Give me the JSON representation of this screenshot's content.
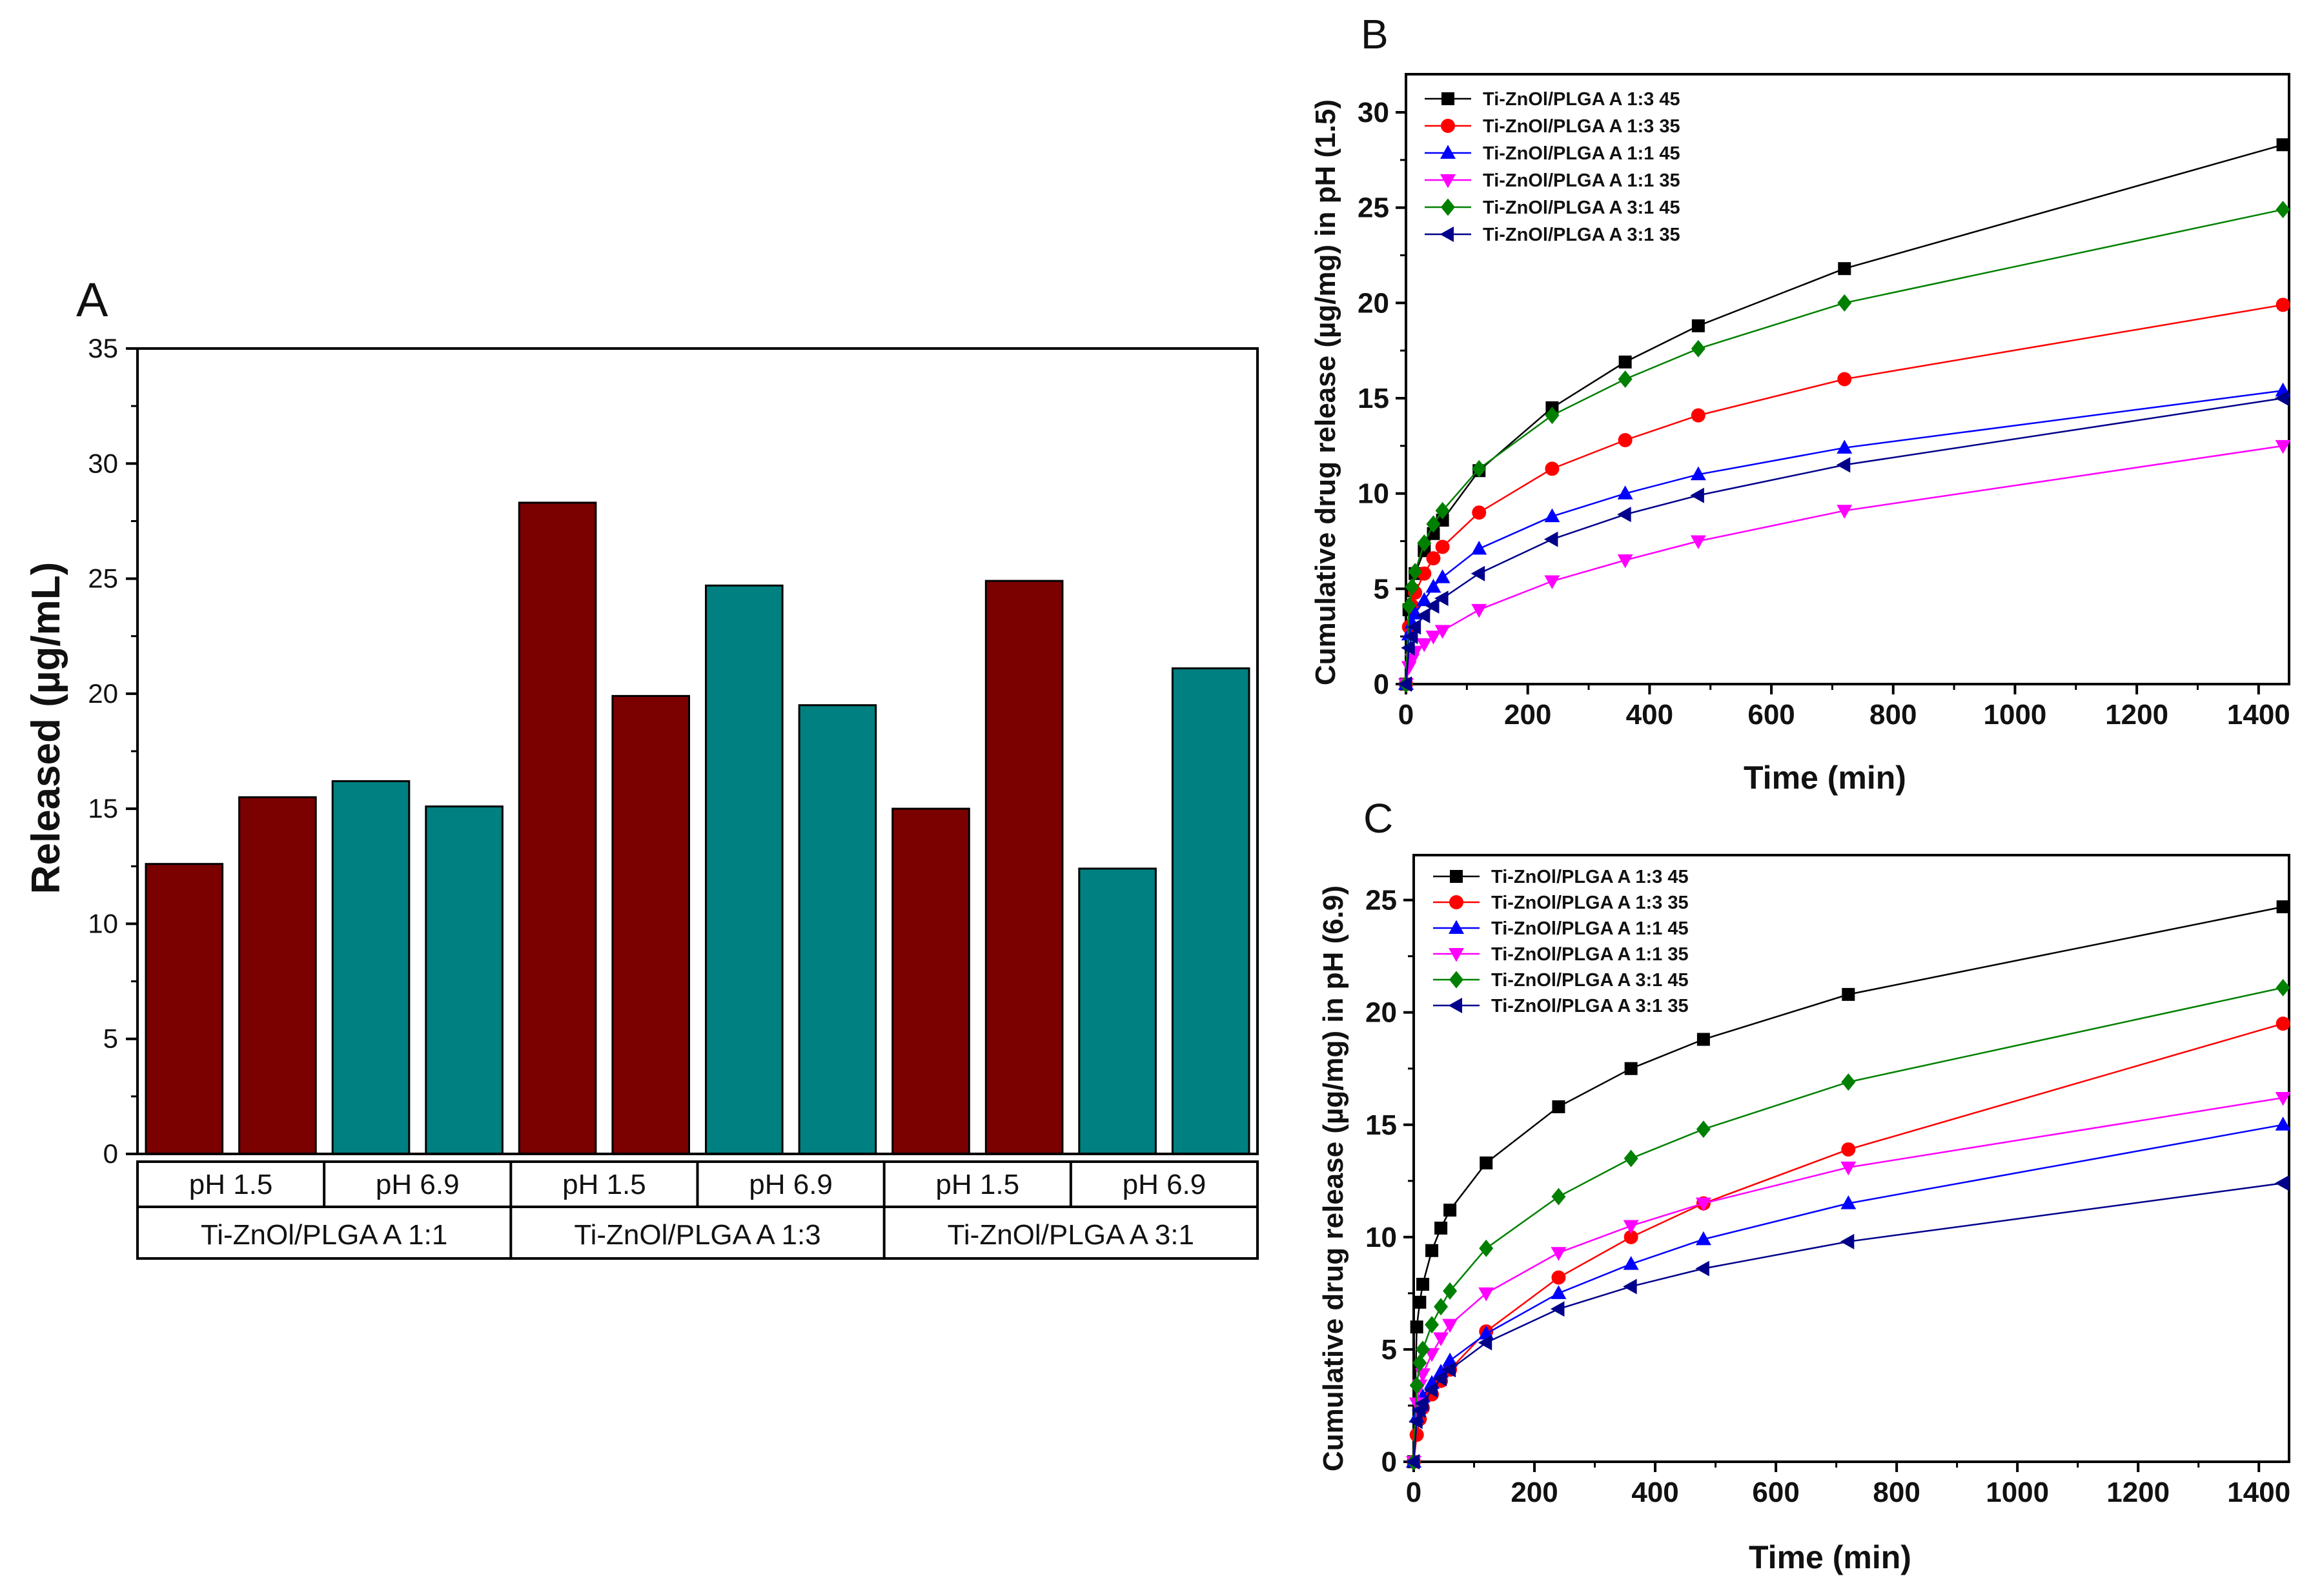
{
  "chart_data": [
    {
      "panel": "A",
      "type": "bar",
      "ylabel": "Released (µg/mL)",
      "ylim": [
        0,
        35
      ],
      "yticks": [
        0,
        5,
        10,
        15,
        20,
        25,
        30,
        35
      ],
      "groups": [
        "Ti-ZnOl/PLGA A 1:1",
        "Ti-ZnOl/PLGA A 1:3",
        "Ti-ZnOl/PLGA A 3:1"
      ],
      "subgroups": [
        "pH 1.5",
        "pH 6.9"
      ],
      "colors": {
        "pH 1.5": "#7b0000",
        "pH 6.9": "#008080"
      },
      "bars": [
        {
          "group": 0,
          "sub": 0,
          "value": 12.6
        },
        {
          "group": 0,
          "sub": 0,
          "value": 15.5
        },
        {
          "group": 0,
          "sub": 1,
          "value": 16.2
        },
        {
          "group": 0,
          "sub": 1,
          "value": 15.1
        },
        {
          "group": 1,
          "sub": 0,
          "value": 28.3
        },
        {
          "group": 1,
          "sub": 0,
          "value": 19.9
        },
        {
          "group": 1,
          "sub": 1,
          "value": 24.7
        },
        {
          "group": 1,
          "sub": 1,
          "value": 19.5
        },
        {
          "group": 2,
          "sub": 0,
          "value": 15.0
        },
        {
          "group": 2,
          "sub": 0,
          "value": 24.9
        },
        {
          "group": 2,
          "sub": 1,
          "value": 12.4
        },
        {
          "group": 2,
          "sub": 1,
          "value": 21.1
        }
      ]
    },
    {
      "panel": "B",
      "type": "line",
      "xlabel": "Time (min)",
      "ylabel": "Cumulative drug release (µg/mg) in  pH (1.5)",
      "xlim": [
        0,
        1450
      ],
      "ylim": [
        0,
        32
      ],
      "xticks": [
        0,
        200,
        400,
        600,
        800,
        1000,
        1200,
        1400
      ],
      "yticks": [
        0,
        5,
        10,
        15,
        20,
        25,
        30
      ],
      "legend_position": "top-left",
      "x": [
        0,
        5,
        10,
        15,
        30,
        45,
        60,
        120,
        240,
        360,
        480,
        720,
        1440
      ],
      "series": [
        {
          "name": "Ti-ZnOl/PLGA A 1:3 45",
          "color": "#000000",
          "marker": "square",
          "values": [
            0,
            3.9,
            4.9,
            5.8,
            7.0,
            7.9,
            8.6,
            11.2,
            14.5,
            16.9,
            18.8,
            21.8,
            28.3
          ]
        },
        {
          "name": "Ti-ZnOl/PLGA A 1:3 35",
          "color": "#ff0000",
          "marker": "circle",
          "values": [
            0,
            3.0,
            4.1,
            4.8,
            5.8,
            6.6,
            7.2,
            9.0,
            11.3,
            12.8,
            14.1,
            16.0,
            19.9
          ]
        },
        {
          "name": "Ti-ZnOl/PLGA A 1:1 45",
          "color": "#0000ff",
          "marker": "triangle-up",
          "values": [
            0,
            2.6,
            3.2,
            3.7,
            4.4,
            5.1,
            5.6,
            7.1,
            8.8,
            10.0,
            11.0,
            12.4,
            15.4
          ]
        },
        {
          "name": "Ti-ZnOl/PLGA A 1:1 35",
          "color": "#ff00ff",
          "marker": "triangle-down",
          "values": [
            0,
            0.9,
            1.3,
            1.7,
            2.1,
            2.5,
            2.8,
            3.9,
            5.4,
            6.5,
            7.5,
            9.1,
            12.5
          ]
        },
        {
          "name": "Ti-ZnOl/PLGA A 3:1 45",
          "color": "#008000",
          "marker": "diamond",
          "values": [
            0,
            4.1,
            5.1,
            5.9,
            7.4,
            8.4,
            9.1,
            11.3,
            14.1,
            16.0,
            17.6,
            20.0,
            24.9
          ]
        },
        {
          "name": "Ti-ZnOl/PLGA A 3:1 35",
          "color": "#00008b",
          "marker": "triangle-left",
          "values": [
            0,
            1.9,
            2.5,
            3.0,
            3.6,
            4.1,
            4.5,
            5.8,
            7.6,
            8.9,
            9.9,
            11.5,
            15.0
          ]
        }
      ]
    },
    {
      "panel": "C",
      "type": "line",
      "xlabel": "Time (min)",
      "ylabel": "Cumulative drug release (µg/mg) in  pH (6.9)",
      "xlim": [
        0,
        1450
      ],
      "ylim": [
        0,
        27
      ],
      "xticks": [
        0,
        200,
        400,
        600,
        800,
        1000,
        1200,
        1400
      ],
      "yticks": [
        0,
        5,
        10,
        15,
        20,
        25
      ],
      "legend_position": "top-left",
      "x": [
        0,
        5,
        10,
        15,
        30,
        45,
        60,
        120,
        240,
        360,
        480,
        720,
        1440
      ],
      "series": [
        {
          "name": "Ti-ZnOl/PLGA A 1:3 45",
          "color": "#000000",
          "marker": "square",
          "values": [
            0,
            6.0,
            7.1,
            7.9,
            9.4,
            10.4,
            11.2,
            13.3,
            15.8,
            17.5,
            18.8,
            20.8,
            24.7
          ]
        },
        {
          "name": "Ti-ZnOl/PLGA A 1:3 35",
          "color": "#ff0000",
          "marker": "circle",
          "values": [
            0,
            1.2,
            1.9,
            2.4,
            3.0,
            3.6,
            4.1,
            5.8,
            8.2,
            10.0,
            11.5,
            13.9,
            19.5
          ]
        },
        {
          "name": "Ti-ZnOl/PLGA A 1:1 45",
          "color": "#0000ff",
          "marker": "triangle-up",
          "values": [
            0,
            2.0,
            2.5,
            2.9,
            3.5,
            4.0,
            4.5,
            5.7,
            7.5,
            8.8,
            9.9,
            11.5,
            15.0
          ]
        },
        {
          "name": "Ti-ZnOl/PLGA A 1:1 35",
          "color": "#ff00ff",
          "marker": "triangle-down",
          "values": [
            0,
            2.6,
            3.4,
            3.9,
            4.8,
            5.5,
            6.1,
            7.5,
            9.3,
            10.5,
            11.5,
            13.1,
            16.2
          ]
        },
        {
          "name": "Ti-ZnOl/PLGA A 3:1 45",
          "color": "#008000",
          "marker": "diamond",
          "values": [
            0,
            3.4,
            4.4,
            5.0,
            6.1,
            6.9,
            7.6,
            9.5,
            11.8,
            13.5,
            14.8,
            16.9,
            21.1
          ]
        },
        {
          "name": "Ti-ZnOl/PLGA A 3:1 35",
          "color": "#00008b",
          "marker": "triangle-left",
          "values": [
            0,
            1.8,
            2.3,
            2.6,
            3.2,
            3.7,
            4.1,
            5.3,
            6.8,
            7.8,
            8.6,
            9.8,
            12.4
          ]
        }
      ]
    }
  ]
}
